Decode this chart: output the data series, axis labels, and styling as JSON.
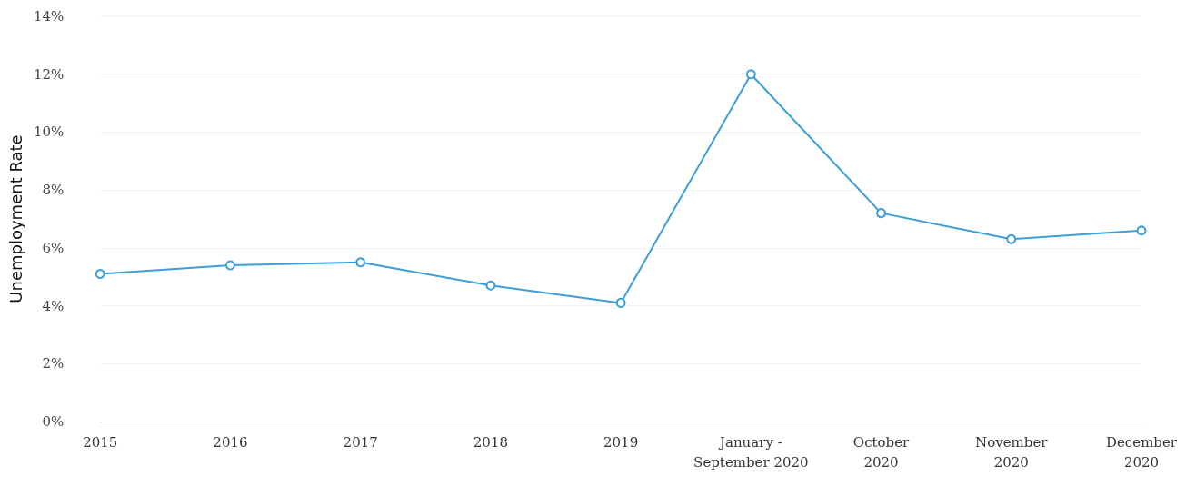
{
  "chart_data": {
    "type": "line",
    "ylabel": "Unemployment Rate",
    "categories": [
      "2015",
      "2016",
      "2017",
      "2018",
      "2019",
      "January -\nSeptember 2020",
      "October\n2020",
      "November\n2020",
      "December\n2020"
    ],
    "series": [
      {
        "color": "#3a9fd8",
        "values": [
          5.1,
          5.4,
          5.5,
          4.7,
          4.1,
          12.0,
          7.2,
          6.3,
          6.6
        ]
      }
    ],
    "ylim": [
      0,
      14
    ],
    "yticks": [
      {
        "value": 0,
        "label": "0%"
      },
      {
        "value": 2,
        "label": "2%"
      },
      {
        "value": 4,
        "label": "4%"
      },
      {
        "value": 6,
        "label": "6%"
      },
      {
        "value": 8,
        "label": "8%"
      },
      {
        "value": 10,
        "label": "10%"
      },
      {
        "value": 12,
        "label": "12%"
      },
      {
        "value": 14,
        "label": "14%"
      }
    ],
    "grid": "y",
    "marker": "circle",
    "line_style": "solid"
  }
}
